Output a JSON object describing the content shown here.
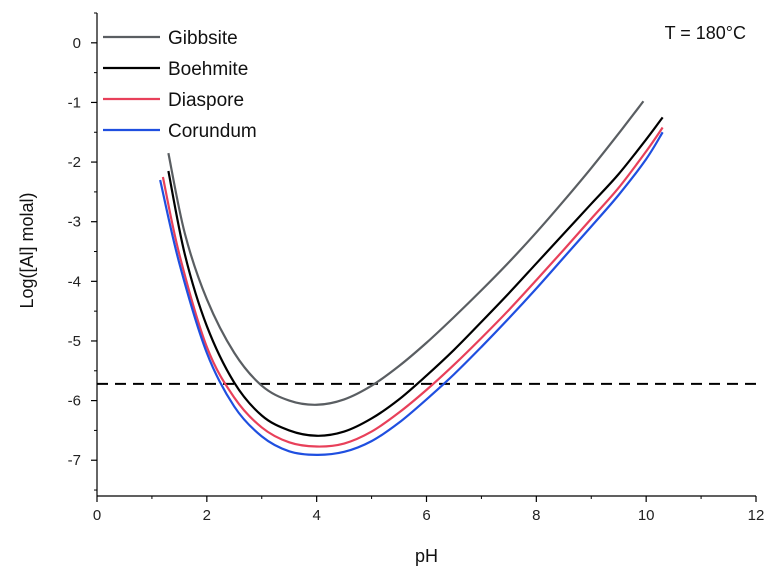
{
  "chart_data": {
    "type": "line",
    "title": "",
    "xlabel": "pH",
    "ylabel": "Log([Al] molal)",
    "xlim": [
      0,
      12
    ],
    "ylim": [
      -7.6,
      0.5
    ],
    "xticks": [
      0,
      2,
      4,
      6,
      8,
      10,
      12
    ],
    "yticks": [
      0,
      -1,
      -2,
      -3,
      -4,
      -5,
      -6,
      -7
    ],
    "grid": false,
    "legend": "top-left",
    "annotation": "T = 180°C",
    "reference_line": {
      "y": -5.72,
      "style": "dashed",
      "color": "#000000"
    },
    "series": [
      {
        "name": "Gibbsite",
        "color": "#5a5e62",
        "x": [
          1.3,
          1.6,
          2.0,
          2.5,
          3.0,
          3.5,
          4.0,
          4.5,
          5.0,
          5.5,
          6.0,
          6.5,
          7.0,
          7.5,
          8.0,
          8.5,
          9.0,
          9.5,
          9.95
        ],
        "y": [
          -1.85,
          -3.2,
          -4.3,
          -5.2,
          -5.75,
          -6.0,
          -6.07,
          -5.98,
          -5.75,
          -5.42,
          -5.03,
          -4.6,
          -4.15,
          -3.68,
          -3.18,
          -2.65,
          -2.1,
          -1.52,
          -0.98
        ]
      },
      {
        "name": "Boehmite",
        "color": "#000000",
        "x": [
          1.3,
          1.6,
          2.0,
          2.5,
          3.0,
          3.5,
          4.0,
          4.5,
          5.0,
          5.5,
          6.0,
          6.5,
          7.0,
          7.5,
          8.0,
          8.5,
          9.0,
          9.5,
          10.0,
          10.3
        ],
        "y": [
          -2.15,
          -3.55,
          -4.75,
          -5.7,
          -6.25,
          -6.5,
          -6.59,
          -6.52,
          -6.3,
          -5.98,
          -5.58,
          -5.15,
          -4.68,
          -4.2,
          -3.7,
          -3.2,
          -2.7,
          -2.2,
          -1.62,
          -1.25
        ]
      },
      {
        "name": "Diaspore",
        "color": "#e8405a",
        "x": [
          1.2,
          1.5,
          2.0,
          2.5,
          3.0,
          3.5,
          4.0,
          4.5,
          5.0,
          5.5,
          6.0,
          6.5,
          7.0,
          7.5,
          8.0,
          8.5,
          9.0,
          9.5,
          10.0,
          10.3
        ],
        "y": [
          -2.25,
          -3.55,
          -5.1,
          -5.95,
          -6.45,
          -6.7,
          -6.77,
          -6.72,
          -6.52,
          -6.2,
          -5.82,
          -5.4,
          -4.95,
          -4.48,
          -3.98,
          -3.47,
          -2.95,
          -2.43,
          -1.82,
          -1.42
        ]
      },
      {
        "name": "Corundum",
        "color": "#1f4fe0",
        "x": [
          1.15,
          1.5,
          2.0,
          2.5,
          3.0,
          3.5,
          4.0,
          4.5,
          5.0,
          5.5,
          6.0,
          6.5,
          7.0,
          7.5,
          8.0,
          8.5,
          9.0,
          9.5,
          10.0,
          10.3
        ],
        "y": [
          -2.3,
          -3.7,
          -5.2,
          -6.1,
          -6.6,
          -6.85,
          -6.91,
          -6.86,
          -6.68,
          -6.37,
          -5.98,
          -5.56,
          -5.1,
          -4.62,
          -4.12,
          -3.6,
          -3.08,
          -2.55,
          -1.95,
          -1.5
        ]
      }
    ]
  }
}
